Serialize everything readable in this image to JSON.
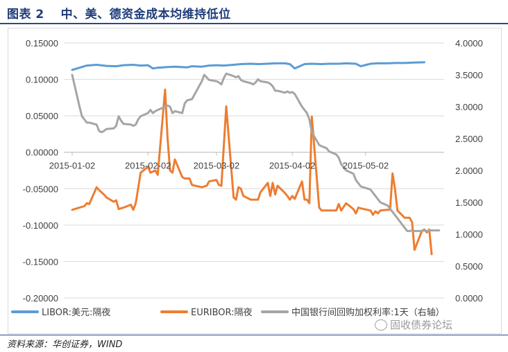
{
  "header": {
    "title": "图表 2　 中、美、德资金成本均维持低位"
  },
  "footer": {
    "source": "资料来源：华创证券，WIND",
    "watermark": "固收债券论坛"
  },
  "colors": {
    "libor": "#5b9bd5",
    "euribor": "#ed7d31",
    "shibor": "#a5a5a5",
    "title": "#1f3d7a"
  },
  "chart_data": {
    "type": "line",
    "x_tick_labels": [
      "2015-01-02",
      "2015-02-02",
      "2015-03-02",
      "2015-04-02",
      "2015-05-02"
    ],
    "y_left_ticks": [
      "0.15000",
      "0.10000",
      "0.05000",
      "0.00000",
      "-0.05000",
      "-0.10000",
      "-0.15000",
      "-0.20000"
    ],
    "y_right_ticks": [
      "4.0000",
      "3.5000",
      "3.0000",
      "2.5000",
      "2.0000",
      "1.5000",
      "1.0000",
      "0.5000",
      "0.0000"
    ],
    "ylim_left": [
      -0.2,
      0.15
    ],
    "ylim_right": [
      0,
      4
    ],
    "xlim": [
      "2015-01-02",
      "2015-05-29"
    ],
    "legend_position": "bottom",
    "series": [
      {
        "name": "LIBOR:美元:隔夜",
        "axis": "left",
        "points": [
          [
            "2015-01-02",
            0.113
          ],
          [
            "2015-01-05",
            0.116
          ],
          [
            "2015-01-08",
            0.119
          ],
          [
            "2015-01-12",
            0.12
          ],
          [
            "2015-01-16",
            0.1185
          ],
          [
            "2015-01-20",
            0.118
          ],
          [
            "2015-01-23",
            0.1195
          ],
          [
            "2015-01-27",
            0.12
          ],
          [
            "2015-01-30",
            0.119
          ],
          [
            "2015-02-02",
            0.1195
          ],
          [
            "2015-02-04",
            0.115
          ],
          [
            "2015-02-06",
            0.116
          ],
          [
            "2015-02-10",
            0.117
          ],
          [
            "2015-02-13",
            0.1175
          ],
          [
            "2015-02-18",
            0.1165
          ],
          [
            "2015-02-20",
            0.118
          ],
          [
            "2015-02-24",
            0.1175
          ],
          [
            "2015-02-27",
            0.119
          ],
          [
            "2015-03-02",
            0.1195
          ],
          [
            "2015-03-05",
            0.119
          ],
          [
            "2015-03-09",
            0.12
          ],
          [
            "2015-03-12",
            0.121
          ],
          [
            "2015-03-16",
            0.1215
          ],
          [
            "2015-03-19",
            0.121
          ],
          [
            "2015-03-23",
            0.1215
          ],
          [
            "2015-03-26",
            0.122
          ],
          [
            "2015-03-30",
            0.122
          ],
          [
            "2015-04-01",
            0.121
          ],
          [
            "2015-04-03",
            0.115
          ],
          [
            "2015-04-07",
            0.121
          ],
          [
            "2015-04-10",
            0.1215
          ],
          [
            "2015-04-14",
            0.121
          ],
          [
            "2015-04-17",
            0.1215
          ],
          [
            "2015-04-21",
            0.1215
          ],
          [
            "2015-04-24",
            0.122
          ],
          [
            "2015-04-28",
            0.1215
          ],
          [
            "2015-04-30",
            0.118
          ],
          [
            "2015-05-04",
            0.1215
          ],
          [
            "2015-05-07",
            0.122
          ],
          [
            "2015-05-11",
            0.122
          ],
          [
            "2015-05-14",
            0.1225
          ],
          [
            "2015-05-18",
            0.1225
          ],
          [
            "2015-05-21",
            0.123
          ],
          [
            "2015-05-26",
            0.1235
          ]
        ]
      },
      {
        "name": "EURIBOR:隔夜",
        "axis": "left",
        "points": [
          [
            "2015-01-02",
            -0.079
          ],
          [
            "2015-01-05",
            -0.076
          ],
          [
            "2015-01-07",
            -0.074
          ],
          [
            "2015-01-08",
            -0.07
          ],
          [
            "2015-01-09",
            -0.071
          ],
          [
            "2015-01-12",
            -0.048
          ],
          [
            "2015-01-13",
            -0.052
          ],
          [
            "2015-01-15",
            -0.058
          ],
          [
            "2015-01-16",
            -0.062
          ],
          [
            "2015-01-19",
            -0.068
          ],
          [
            "2015-01-20",
            -0.066
          ],
          [
            "2015-01-21",
            -0.078
          ],
          [
            "2015-01-23",
            -0.076
          ],
          [
            "2015-01-26",
            -0.072
          ],
          [
            "2015-01-27",
            -0.079
          ],
          [
            "2015-01-28",
            -0.07
          ],
          [
            "2015-01-30",
            -0.028
          ],
          [
            "2015-02-02",
            -0.02
          ],
          [
            "2015-02-03",
            -0.028
          ],
          [
            "2015-02-05",
            -0.025
          ],
          [
            "2015-02-06",
            -0.031
          ],
          [
            "2015-02-09",
            0.086
          ],
          [
            "2015-02-10",
            0.02
          ],
          [
            "2015-02-11",
            -0.025
          ],
          [
            "2015-02-12",
            -0.028
          ],
          [
            "2015-02-13",
            -0.01
          ],
          [
            "2015-02-16",
            -0.034
          ],
          [
            "2015-02-17",
            -0.036
          ],
          [
            "2015-02-19",
            -0.036
          ],
          [
            "2015-02-20",
            -0.045
          ],
          [
            "2015-02-24",
            -0.048
          ],
          [
            "2015-02-26",
            -0.046
          ],
          [
            "2015-02-27",
            -0.04
          ],
          [
            "2015-03-02",
            -0.038
          ],
          [
            "2015-03-03",
            -0.045
          ],
          [
            "2015-03-04",
            -0.046
          ],
          [
            "2015-03-06",
            0.063
          ],
          [
            "2015-03-09",
            -0.062
          ],
          [
            "2015-03-10",
            -0.065
          ],
          [
            "2015-03-11",
            -0.048
          ],
          [
            "2015-03-12",
            -0.05
          ],
          [
            "2015-03-13",
            -0.06
          ],
          [
            "2015-03-16",
            -0.065
          ],
          [
            "2015-03-19",
            -0.065
          ],
          [
            "2015-03-20",
            -0.055
          ],
          [
            "2015-03-23",
            -0.042
          ],
          [
            "2015-03-24",
            -0.06
          ],
          [
            "2015-03-25",
            -0.042
          ],
          [
            "2015-03-26",
            -0.058
          ],
          [
            "2015-03-27",
            -0.046
          ],
          [
            "2015-03-30",
            -0.056
          ],
          [
            "2015-03-31",
            -0.06
          ],
          [
            "2015-04-01",
            -0.065
          ],
          [
            "2015-04-02",
            -0.06
          ],
          [
            "2015-04-03",
            -0.064
          ],
          [
            "2015-04-06",
            -0.04
          ],
          [
            "2015-04-07",
            -0.065
          ],
          [
            "2015-04-08",
            -0.065
          ],
          [
            "2015-04-09",
            -0.07
          ],
          [
            "2015-04-10",
            0.049
          ],
          [
            "2015-04-13",
            -0.076
          ],
          [
            "2015-04-14",
            -0.08
          ],
          [
            "2015-04-17",
            -0.08
          ],
          [
            "2015-04-20",
            -0.08
          ],
          [
            "2015-04-21",
            -0.071
          ],
          [
            "2015-04-22",
            -0.08
          ],
          [
            "2015-04-24",
            -0.07
          ],
          [
            "2015-04-27",
            -0.078
          ],
          [
            "2015-04-28",
            -0.084
          ],
          [
            "2015-04-29",
            -0.076
          ],
          [
            "2015-04-30",
            -0.077
          ],
          [
            "2015-05-04",
            -0.08
          ],
          [
            "2015-05-05",
            -0.086
          ],
          [
            "2015-05-06",
            -0.081
          ],
          [
            "2015-05-07",
            -0.084
          ],
          [
            "2015-05-08",
            -0.08
          ],
          [
            "2015-05-11",
            -0.079
          ],
          [
            "2015-05-12",
            -0.079
          ],
          [
            "2015-05-13",
            -0.029
          ],
          [
            "2015-05-14",
            -0.05
          ],
          [
            "2015-05-15",
            -0.08
          ],
          [
            "2015-05-18",
            -0.09
          ],
          [
            "2015-05-20",
            -0.09
          ],
          [
            "2015-05-21",
            -0.096
          ],
          [
            "2015-05-22",
            -0.134
          ],
          [
            "2015-05-25",
            -0.108
          ],
          [
            "2015-05-26",
            -0.106
          ],
          [
            "2015-05-27",
            -0.11
          ],
          [
            "2015-05-28",
            -0.106
          ],
          [
            "2015-05-29",
            -0.14
          ]
        ]
      },
      {
        "name": "中国银行间回购加权利率:1天（右轴）",
        "axis": "right",
        "points": [
          [
            "2015-01-02",
            3.5
          ],
          [
            "2015-01-05",
            3.0
          ],
          [
            "2015-01-06",
            2.85
          ],
          [
            "2015-01-07",
            2.8
          ],
          [
            "2015-01-08",
            2.75
          ],
          [
            "2015-01-09",
            2.75
          ],
          [
            "2015-01-12",
            2.72
          ],
          [
            "2015-01-13",
            2.62
          ],
          [
            "2015-01-14",
            2.6
          ],
          [
            "2015-01-15",
            2.62
          ],
          [
            "2015-01-16",
            2.65
          ],
          [
            "2015-01-19",
            2.66
          ],
          [
            "2015-01-20",
            2.7
          ],
          [
            "2015-01-21",
            2.85
          ],
          [
            "2015-01-22",
            2.78
          ],
          [
            "2015-01-23",
            2.73
          ],
          [
            "2015-01-26",
            2.72
          ],
          [
            "2015-01-27",
            2.7
          ],
          [
            "2015-01-28",
            2.72
          ],
          [
            "2015-01-29",
            2.8
          ],
          [
            "2015-01-30",
            2.85
          ],
          [
            "2015-02-02",
            2.9
          ],
          [
            "2015-02-03",
            2.95
          ],
          [
            "2015-02-04",
            2.9
          ],
          [
            "2015-02-05",
            2.93
          ],
          [
            "2015-02-06",
            2.95
          ],
          [
            "2015-02-09",
            3.0
          ],
          [
            "2015-02-10",
            3.02
          ],
          [
            "2015-02-11",
            3.0
          ],
          [
            "2015-02-12",
            2.9
          ],
          [
            "2015-02-13",
            2.93
          ],
          [
            "2015-02-16",
            2.9
          ],
          [
            "2015-02-17",
            3.05
          ],
          [
            "2015-02-18",
            3.1
          ],
          [
            "2015-02-20",
            3.12
          ],
          [
            "2015-02-24",
            3.4
          ],
          [
            "2015-02-25",
            3.5
          ],
          [
            "2015-02-27",
            3.42
          ],
          [
            "2015-03-02",
            3.4
          ],
          [
            "2015-03-03",
            3.38
          ],
          [
            "2015-03-04",
            3.35
          ],
          [
            "2015-03-05",
            3.45
          ],
          [
            "2015-03-06",
            3.52
          ],
          [
            "2015-03-09",
            3.48
          ],
          [
            "2015-03-10",
            3.46
          ],
          [
            "2015-03-11",
            3.48
          ],
          [
            "2015-03-12",
            3.42
          ],
          [
            "2015-03-13",
            3.4
          ],
          [
            "2015-03-16",
            3.37
          ],
          [
            "2015-03-17",
            3.35
          ],
          [
            "2015-03-18",
            3.38
          ],
          [
            "2015-03-19",
            3.43
          ],
          [
            "2015-03-20",
            3.4
          ],
          [
            "2015-03-23",
            3.38
          ],
          [
            "2015-03-24",
            3.36
          ],
          [
            "2015-03-25",
            3.32
          ],
          [
            "2015-03-26",
            3.25
          ],
          [
            "2015-03-27",
            3.25
          ],
          [
            "2015-03-30",
            3.22
          ],
          [
            "2015-03-31",
            3.24
          ],
          [
            "2015-04-01",
            3.22
          ],
          [
            "2015-04-02",
            3.23
          ],
          [
            "2015-04-03",
            3.2
          ],
          [
            "2015-04-06",
            3.0
          ],
          [
            "2015-04-08",
            2.9
          ],
          [
            "2015-04-09",
            2.8
          ],
          [
            "2015-04-10",
            2.6
          ],
          [
            "2015-04-13",
            2.4
          ],
          [
            "2015-04-14",
            2.38
          ],
          [
            "2015-04-16",
            2.35
          ],
          [
            "2015-04-17",
            2.3
          ],
          [
            "2015-04-20",
            2.25
          ],
          [
            "2015-04-21",
            2.2
          ],
          [
            "2015-04-22",
            2.1
          ],
          [
            "2015-04-23",
            2.05
          ],
          [
            "2015-04-24",
            2.0
          ],
          [
            "2015-04-27",
            1.95
          ],
          [
            "2015-04-28",
            1.85
          ],
          [
            "2015-04-29",
            1.8
          ],
          [
            "2015-04-30",
            1.75
          ],
          [
            "2015-05-04",
            1.7
          ],
          [
            "2015-05-05",
            1.65
          ],
          [
            "2015-05-06",
            1.6
          ],
          [
            "2015-05-07",
            1.55
          ],
          [
            "2015-05-08",
            1.5
          ],
          [
            "2015-05-11",
            1.45
          ],
          [
            "2015-05-12",
            1.4
          ],
          [
            "2015-05-13",
            1.35
          ],
          [
            "2015-05-14",
            1.3
          ],
          [
            "2015-05-15",
            1.25
          ],
          [
            "2015-05-18",
            1.1
          ],
          [
            "2015-05-19",
            1.05
          ],
          [
            "2015-05-20",
            1.05
          ],
          [
            "2015-05-21",
            1.06
          ],
          [
            "2015-05-22",
            1.05
          ],
          [
            "2015-05-25",
            1.05
          ],
          [
            "2015-05-26",
            1.06
          ],
          [
            "2015-05-27",
            1.05
          ],
          [
            "2015-05-28",
            1.06
          ],
          [
            "2015-05-29",
            1.06
          ],
          [
            "2015-06-01",
            1.06
          ]
        ]
      }
    ]
  }
}
